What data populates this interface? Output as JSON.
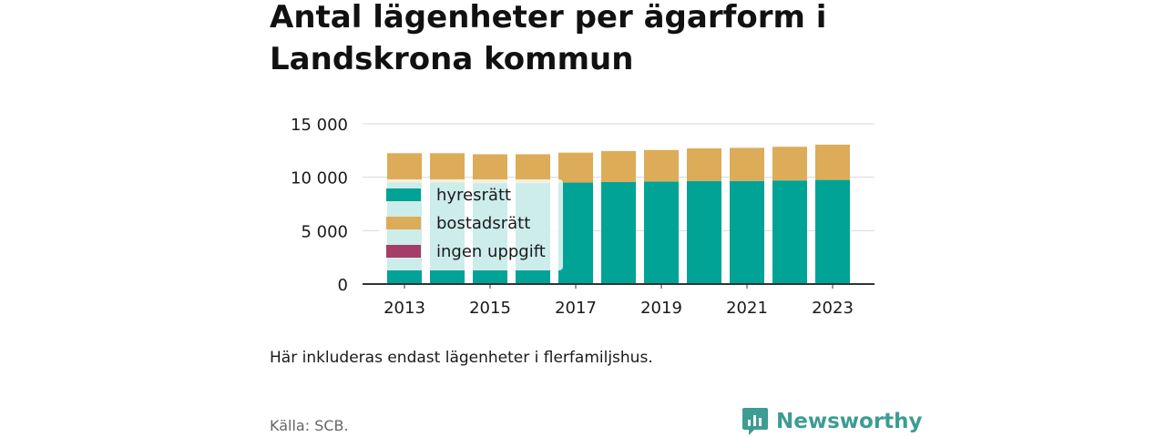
{
  "title": "Antal lägenheter per ägarform i Landskrona kommun",
  "note": "Här inkluderas endast lägenheter i flerfamiljshus.",
  "source": "Källa: SCB.",
  "brand": "Newsworthy",
  "colors": {
    "hyresratt": "#00a396",
    "bostadsratt": "#dcac58",
    "ingen_uppgift": "#a63d66",
    "grid": "#d9d9d9",
    "axis": "#333333",
    "brand": "#3d9c94"
  },
  "chart_data": {
    "type": "bar",
    "stacked": true,
    "categories": [
      "2013",
      "2014",
      "2015",
      "2016",
      "2017",
      "2018",
      "2019",
      "2020",
      "2021",
      "2022",
      "2023"
    ],
    "x_tick_labels": [
      "2013",
      "2015",
      "2017",
      "2019",
      "2021",
      "2023"
    ],
    "y_ticks": [
      0,
      5000,
      10000,
      15000
    ],
    "y_tick_labels": [
      "0",
      "5 000",
      "10 000",
      "15 000"
    ],
    "ylim": [
      0,
      15000
    ],
    "grid": true,
    "legend_position": "top-left inside",
    "series": [
      {
        "name": "hyresrätt",
        "key": "hyresratt",
        "values": [
          9500,
          9500,
          9450,
          9450,
          9500,
          9550,
          9600,
          9650,
          9650,
          9700,
          9750
        ]
      },
      {
        "name": "bostadsrätt",
        "key": "bostadsratt",
        "values": [
          2750,
          2750,
          2700,
          2700,
          2800,
          2900,
          2950,
          3050,
          3100,
          3150,
          3300
        ]
      },
      {
        "name": "ingen uppgift",
        "key": "ingen_uppgift",
        "values": [
          0,
          0,
          0,
          0,
          0,
          0,
          0,
          0,
          0,
          0,
          0
        ]
      }
    ]
  }
}
